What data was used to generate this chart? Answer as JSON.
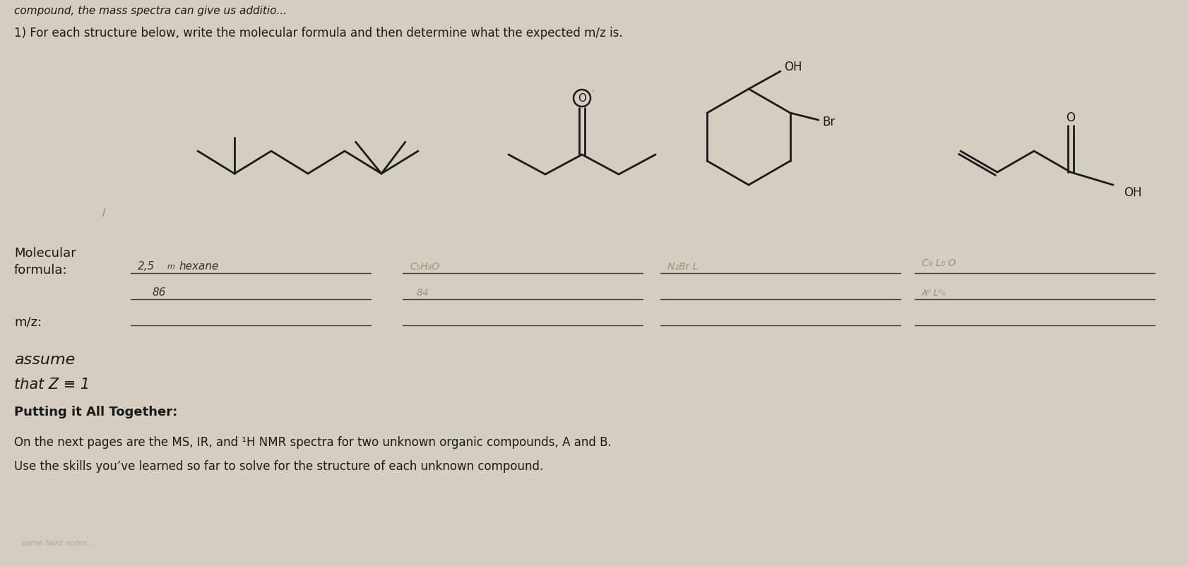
{
  "bg_color": "#d4cec0",
  "text_color": "#1a1a1a",
  "line_color": "#1a1a1a",
  "faint_color": "#8a8070",
  "top_text": "compound, the mass spectra can give us additio...",
  "q1_text": "1) For each structure below, write the molecular formula and then determine what the expected m/z is.",
  "mol_label": "Molecular\nformula:",
  "mz_label": "m/z:",
  "assume1": "assume",
  "assume2": "that Z ≡ 1",
  "putting": "Putting it All Together:",
  "bottom1": "On the next pages are the MS, IR, and ¹H NMR spectra for two unknown organic compounds, A and B.",
  "bottom2": "Use the skills you’ve learned so far to solve for the structure of each unknown compound."
}
